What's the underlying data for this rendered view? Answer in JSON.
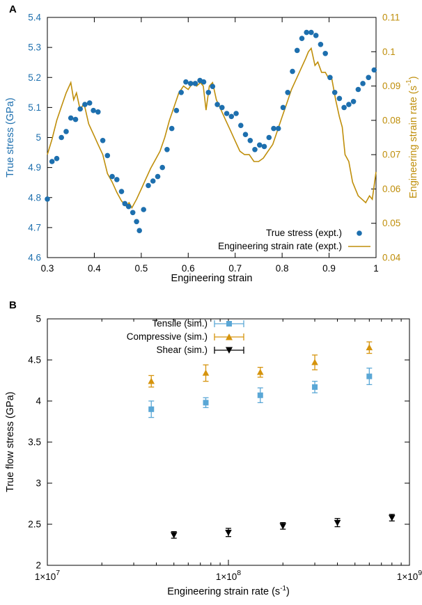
{
  "figure": {
    "panel_a_label": "A",
    "panel_b_label": "B"
  },
  "colors": {
    "stress_blue": "#1d6fae",
    "rate_gold": "#bf8e0a",
    "tensile_blue": "#5aa7d6",
    "compressive_orange": "#d6940d",
    "shear_black": "#000000"
  },
  "chart_data": [
    {
      "type": "line",
      "title": "",
      "xlabel": "Engineering strain",
      "ylabel_left": "True stress (GPa)",
      "ylabel_right_pre": "Engineering strain rate (s",
      "ylabel_right_sup": "-1",
      "ylabel_right_post": ")",
      "xlim": [
        0.3,
        1.0
      ],
      "ylim_left": [
        4.6,
        5.4
      ],
      "ylim_right": [
        0.04,
        0.11
      ],
      "grid": false,
      "legend_position": "bottom-right-inside",
      "xticks": [
        [
          0.3,
          "0.3"
        ],
        [
          0.4,
          "0.4"
        ],
        [
          0.5,
          "0.5"
        ],
        [
          0.6,
          "0.6"
        ],
        [
          0.7,
          "0.7"
        ],
        [
          0.8,
          "0.8"
        ],
        [
          0.9,
          "0.9"
        ],
        [
          1,
          "1"
        ]
      ],
      "yticks_left": [
        [
          4.6,
          "4.6"
        ],
        [
          4.7,
          "4.7"
        ],
        [
          4.8,
          "4.8"
        ],
        [
          4.9,
          "4.9"
        ],
        [
          5,
          "5"
        ],
        [
          5.1,
          "5.1"
        ],
        [
          5.2,
          "5.2"
        ],
        [
          5.3,
          "5.3"
        ],
        [
          5.4,
          "5.4"
        ]
      ],
      "yticks_right": [
        [
          0.04,
          "0.04"
        ],
        [
          0.05,
          "0.05"
        ],
        [
          0.06,
          "0.06"
        ],
        [
          0.07,
          "0.07"
        ],
        [
          0.08,
          "0.08"
        ],
        [
          0.09,
          "0.09"
        ],
        [
          0.1,
          "0.1"
        ],
        [
          0.11,
          "0.11"
        ]
      ],
      "series": [
        {
          "name": "True stress (expt.)",
          "style": "points",
          "marker": "circle",
          "axis": "left",
          "color_key": "stress_blue",
          "points": [
            [
              0.3,
              4.795
            ],
            [
              0.31,
              4.92
            ],
            [
              0.32,
              4.93
            ],
            [
              0.33,
              5.0
            ],
            [
              0.34,
              5.02
            ],
            [
              0.35,
              5.065
            ],
            [
              0.36,
              5.06
            ],
            [
              0.37,
              5.095
            ],
            [
              0.38,
              5.11
            ],
            [
              0.39,
              5.115
            ],
            [
              0.398,
              5.09
            ],
            [
              0.408,
              5.085
            ],
            [
              0.418,
              4.99
            ],
            [
              0.428,
              4.94
            ],
            [
              0.438,
              4.87
            ],
            [
              0.448,
              4.86
            ],
            [
              0.458,
              4.82
            ],
            [
              0.465,
              4.78
            ],
            [
              0.473,
              4.77
            ],
            [
              0.482,
              4.75
            ],
            [
              0.49,
              4.72
            ],
            [
              0.496,
              4.69
            ],
            [
              0.505,
              4.76
            ],
            [
              0.515,
              4.84
            ],
            [
              0.525,
              4.855
            ],
            [
              0.535,
              4.87
            ],
            [
              0.545,
              4.9
            ],
            [
              0.555,
              4.96
            ],
            [
              0.565,
              5.03
            ],
            [
              0.575,
              5.09
            ],
            [
              0.585,
              5.15
            ],
            [
              0.595,
              5.185
            ],
            [
              0.605,
              5.18
            ],
            [
              0.615,
              5.18
            ],
            [
              0.625,
              5.19
            ],
            [
              0.633,
              5.185
            ],
            [
              0.643,
              5.15
            ],
            [
              0.652,
              5.17
            ],
            [
              0.662,
              5.11
            ],
            [
              0.672,
              5.1
            ],
            [
              0.682,
              5.08
            ],
            [
              0.692,
              5.07
            ],
            [
              0.702,
              5.08
            ],
            [
              0.712,
              5.04
            ],
            [
              0.722,
              5.01
            ],
            [
              0.732,
              4.99
            ],
            [
              0.742,
              4.96
            ],
            [
              0.752,
              4.975
            ],
            [
              0.762,
              4.97
            ],
            [
              0.772,
              5.0
            ],
            [
              0.782,
              5.03
            ],
            [
              0.792,
              5.03
            ],
            [
              0.802,
              5.1
            ],
            [
              0.812,
              5.15
            ],
            [
              0.822,
              5.22
            ],
            [
              0.832,
              5.29
            ],
            [
              0.842,
              5.33
            ],
            [
              0.852,
              5.35
            ],
            [
              0.862,
              5.35
            ],
            [
              0.872,
              5.34
            ],
            [
              0.882,
              5.31
            ],
            [
              0.892,
              5.28
            ],
            [
              0.902,
              5.2
            ],
            [
              0.912,
              5.15
            ],
            [
              0.922,
              5.13
            ],
            [
              0.932,
              5.1
            ],
            [
              0.942,
              5.11
            ],
            [
              0.952,
              5.12
            ],
            [
              0.962,
              5.16
            ],
            [
              0.972,
              5.18
            ],
            [
              0.984,
              5.2
            ],
            [
              0.996,
              5.225
            ]
          ]
        },
        {
          "name": "Engineering strain rate (expt.)",
          "style": "line",
          "axis": "right",
          "color_key": "rate_gold",
          "points": [
            [
              0.3,
              0.07
            ],
            [
              0.31,
              0.0745
            ],
            [
              0.32,
              0.08
            ],
            [
              0.33,
              0.084
            ],
            [
              0.34,
              0.088
            ],
            [
              0.35,
              0.091
            ],
            [
              0.356,
              0.086
            ],
            [
              0.362,
              0.088
            ],
            [
              0.37,
              0.083
            ],
            [
              0.378,
              0.085
            ],
            [
              0.388,
              0.079
            ],
            [
              0.398,
              0.076
            ],
            [
              0.408,
              0.073
            ],
            [
              0.418,
              0.07
            ],
            [
              0.428,
              0.0645
            ],
            [
              0.438,
              0.062
            ],
            [
              0.448,
              0.059
            ],
            [
              0.458,
              0.0565
            ],
            [
              0.468,
              0.055
            ],
            [
              0.474,
              0.056
            ],
            [
              0.48,
              0.0545
            ],
            [
              0.49,
              0.057
            ],
            [
              0.5,
              0.06
            ],
            [
              0.51,
              0.063
            ],
            [
              0.52,
              0.066
            ],
            [
              0.53,
              0.0685
            ],
            [
              0.54,
              0.071
            ],
            [
              0.55,
              0.075
            ],
            [
              0.56,
              0.08
            ],
            [
              0.57,
              0.084
            ],
            [
              0.58,
              0.088
            ],
            [
              0.59,
              0.09
            ],
            [
              0.6,
              0.089
            ],
            [
              0.61,
              0.091
            ],
            [
              0.618,
              0.09
            ],
            [
              0.626,
              0.091
            ],
            [
              0.632,
              0.09
            ],
            [
              0.638,
              0.083
            ],
            [
              0.645,
              0.09
            ],
            [
              0.652,
              0.091
            ],
            [
              0.66,
              0.086
            ],
            [
              0.67,
              0.083
            ],
            [
              0.68,
              0.08
            ],
            [
              0.69,
              0.077
            ],
            [
              0.7,
              0.074
            ],
            [
              0.71,
              0.071
            ],
            [
              0.72,
              0.07
            ],
            [
              0.73,
              0.07
            ],
            [
              0.74,
              0.068
            ],
            [
              0.75,
              0.068
            ],
            [
              0.76,
              0.069
            ],
            [
              0.77,
              0.071
            ],
            [
              0.78,
              0.073
            ],
            [
              0.79,
              0.077
            ],
            [
              0.8,
              0.081
            ],
            [
              0.81,
              0.085
            ],
            [
              0.82,
              0.089
            ],
            [
              0.83,
              0.092
            ],
            [
              0.84,
              0.095
            ],
            [
              0.85,
              0.098
            ],
            [
              0.856,
              0.1
            ],
            [
              0.862,
              0.101
            ],
            [
              0.87,
              0.096
            ],
            [
              0.876,
              0.097
            ],
            [
              0.884,
              0.094
            ],
            [
              0.892,
              0.094
            ],
            [
              0.9,
              0.092
            ],
            [
              0.906,
              0.092
            ],
            [
              0.914,
              0.086
            ],
            [
              0.922,
              0.081
            ],
            [
              0.928,
              0.078
            ],
            [
              0.934,
              0.07
            ],
            [
              0.942,
              0.068
            ],
            [
              0.95,
              0.062
            ],
            [
              0.956,
              0.06
            ],
            [
              0.962,
              0.058
            ],
            [
              0.97,
              0.057
            ],
            [
              0.978,
              0.056
            ],
            [
              0.986,
              0.058
            ],
            [
              0.992,
              0.057
            ],
            [
              1.0,
              0.065
            ]
          ]
        }
      ]
    },
    {
      "type": "scatter",
      "title": "",
      "xlabel_pre": "Engineering strain rate (s",
      "xlabel_sup": "-1",
      "xlabel_post": ")",
      "ylabel": "True flow stress (GPa)",
      "xscale": "log",
      "xlim": [
        10000000.0,
        1000000000.0
      ],
      "ylim": [
        2,
        5
      ],
      "grid": false,
      "legend_position": "top-left-inside",
      "yticks": [
        [
          2,
          "2"
        ],
        [
          2.5,
          "2.5"
        ],
        [
          3,
          "3"
        ],
        [
          3.5,
          "3.5"
        ],
        [
          4,
          "4"
        ],
        [
          4.5,
          "4.5"
        ],
        [
          5,
          "5"
        ]
      ],
      "xticks_major": [
        {
          "v": 10000000.0,
          "base": "1×10",
          "sup": "7"
        },
        {
          "v": 100000000.0,
          "base": "1×10",
          "sup": "8"
        },
        {
          "v": 1000000000.0,
          "base": "1×10",
          "sup": "9"
        }
      ],
      "series": [
        {
          "name": "Tensile (sim.)",
          "marker": "square",
          "color_key": "tensile_blue",
          "x": [
            37500000.0,
            75000000.0,
            150000000.0,
            300000000.0,
            600000000.0
          ],
          "y": [
            3.9,
            3.98,
            4.07,
            4.17,
            4.3
          ],
          "yerr": [
            0.1,
            0.06,
            0.09,
            0.07,
            0.1
          ]
        },
        {
          "name": "Compressive (sim.)",
          "marker": "triangle-up",
          "color_key": "compressive_orange",
          "x": [
            37500000.0,
            75000000.0,
            150000000.0,
            300000000.0,
            600000000.0
          ],
          "y": [
            4.24,
            4.34,
            4.35,
            4.47,
            4.65
          ],
          "yerr": [
            0.07,
            0.1,
            0.06,
            0.09,
            0.07
          ]
        },
        {
          "name": "Shear (sim.)",
          "marker": "triangle-down",
          "color_key": "shear_black",
          "x": [
            50000000.0,
            100000000.0,
            200000000.0,
            400000000.0,
            800000000.0
          ],
          "y": [
            2.37,
            2.4,
            2.48,
            2.52,
            2.58
          ],
          "yerr": [
            0.04,
            0.05,
            0.04,
            0.05,
            0.04
          ]
        }
      ]
    }
  ]
}
